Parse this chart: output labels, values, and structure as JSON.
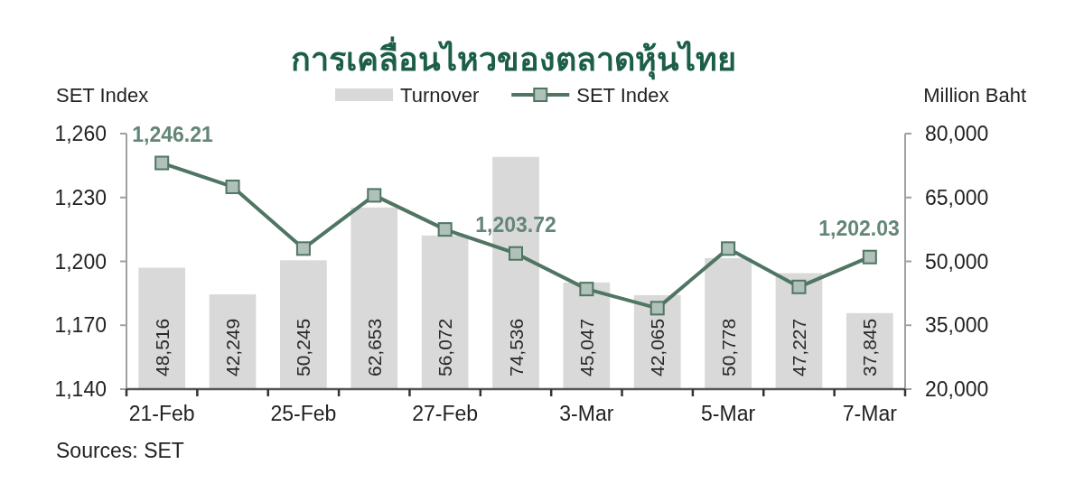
{
  "chart_data": {
    "type": "bar",
    "title": "การเคลื่อนไหวของตลาดหุ้นไทย",
    "ylabel": "SET Index",
    "y2label": "Million Baht",
    "categories": [
      "21-Feb",
      null,
      "25-Feb",
      null,
      "27-Feb",
      null,
      "3-Mar",
      null,
      "5-Mar",
      null,
      "7-Mar"
    ],
    "series": [
      {
        "name": "Turnover",
        "axis": "y2",
        "color": "#d9d9d9",
        "values": [
          48516,
          42249,
          50245,
          62653,
          56072,
          74536,
          45047,
          42065,
          50778,
          47227,
          37845
        ],
        "value_labels": [
          "48,516",
          "42,249",
          "50,245",
          "62,653",
          "56,072",
          "74,536",
          "45,047",
          "42,065",
          "50,778",
          "47,227",
          "37,845"
        ]
      },
      {
        "name": "SET Index",
        "type": "line",
        "color": "#4f7563",
        "marker": "square",
        "values": [
          1246.21,
          1235,
          1206,
          1231,
          1215,
          1203.72,
          1187,
          1178,
          1206,
          1188,
          1202.03
        ],
        "value_labels": [
          "1,246.21",
          null,
          null,
          null,
          null,
          "1,203.72",
          null,
          null,
          null,
          null,
          "1,202.03"
        ]
      }
    ],
    "ylim": [
      1140,
      1260
    ],
    "yticks": [
      {
        "value": 1140,
        "label": "1,140"
      },
      {
        "value": 1170,
        "label": "1,170"
      },
      {
        "value": 1200,
        "label": "1,200"
      },
      {
        "value": 1230,
        "label": "1,230"
      },
      {
        "value": 1260,
        "label": "1,260"
      }
    ],
    "y2lim": [
      20000,
      80000
    ],
    "y2ticks": [
      {
        "value": 20000,
        "label": "20,000"
      },
      {
        "value": 35000,
        "label": "35,000"
      },
      {
        "value": 50000,
        "label": "50,000"
      },
      {
        "value": 65000,
        "label": "65,000"
      },
      {
        "value": 80000,
        "label": "80,000"
      }
    ],
    "legend": "top",
    "annotations": [
      "Sources: SET"
    ]
  }
}
